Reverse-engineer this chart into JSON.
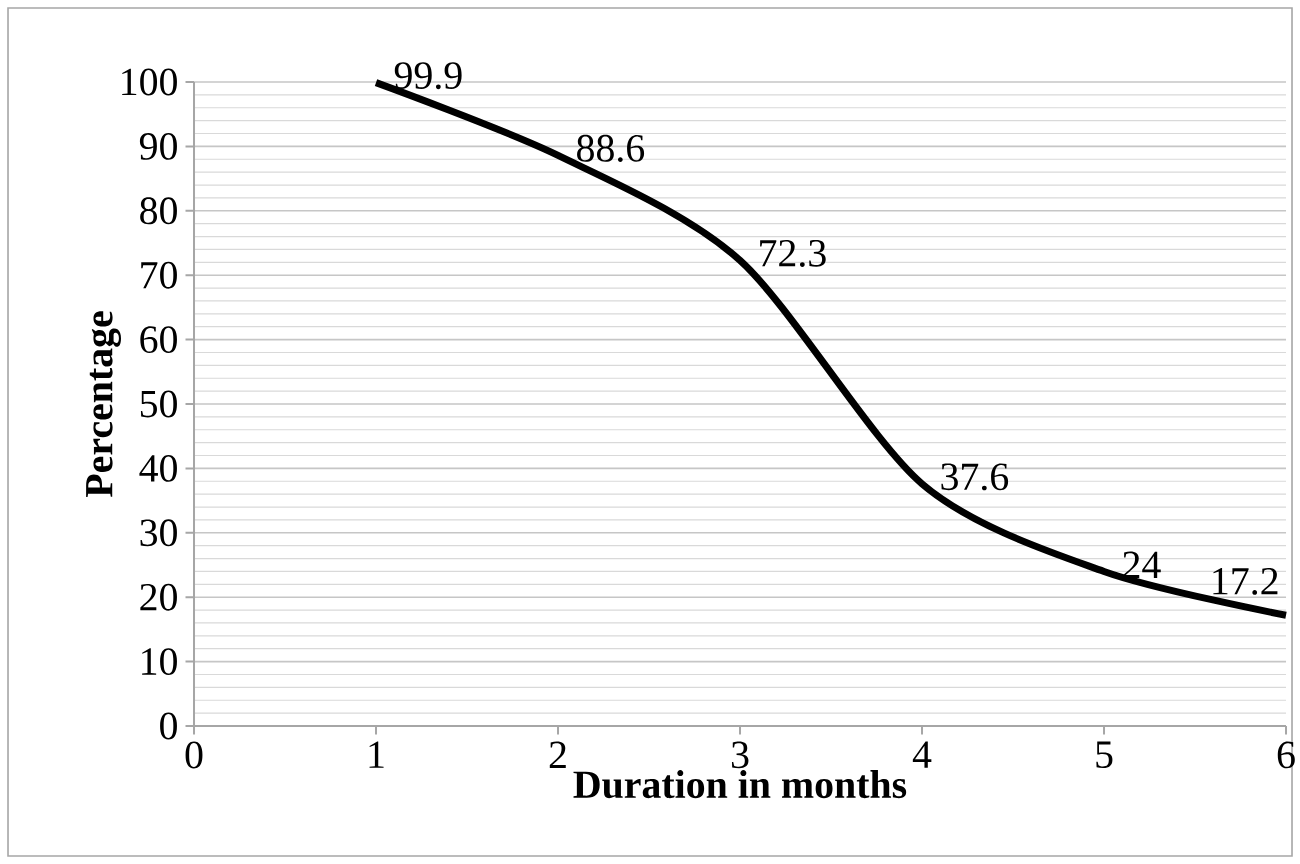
{
  "chart_data": {
    "type": "line",
    "xlabel": "Duration in months",
    "ylabel": "Percentage",
    "x": [
      1,
      2,
      3,
      4,
      5,
      6
    ],
    "series": [
      {
        "color": "#000000",
        "values": [
          99.9,
          88.6,
          72.3,
          37.6,
          24,
          17.2
        ]
      }
    ],
    "xlim": [
      0,
      6
    ],
    "xticks": [
      0,
      1,
      2,
      3,
      4,
      5,
      6
    ],
    "ylim": [
      0,
      100
    ],
    "yticks": [
      0,
      10,
      20,
      30,
      40,
      50,
      60,
      70,
      80,
      90,
      100
    ],
    "grid": "y",
    "data_labels": true,
    "line_style": "solid",
    "marker": "none"
  }
}
